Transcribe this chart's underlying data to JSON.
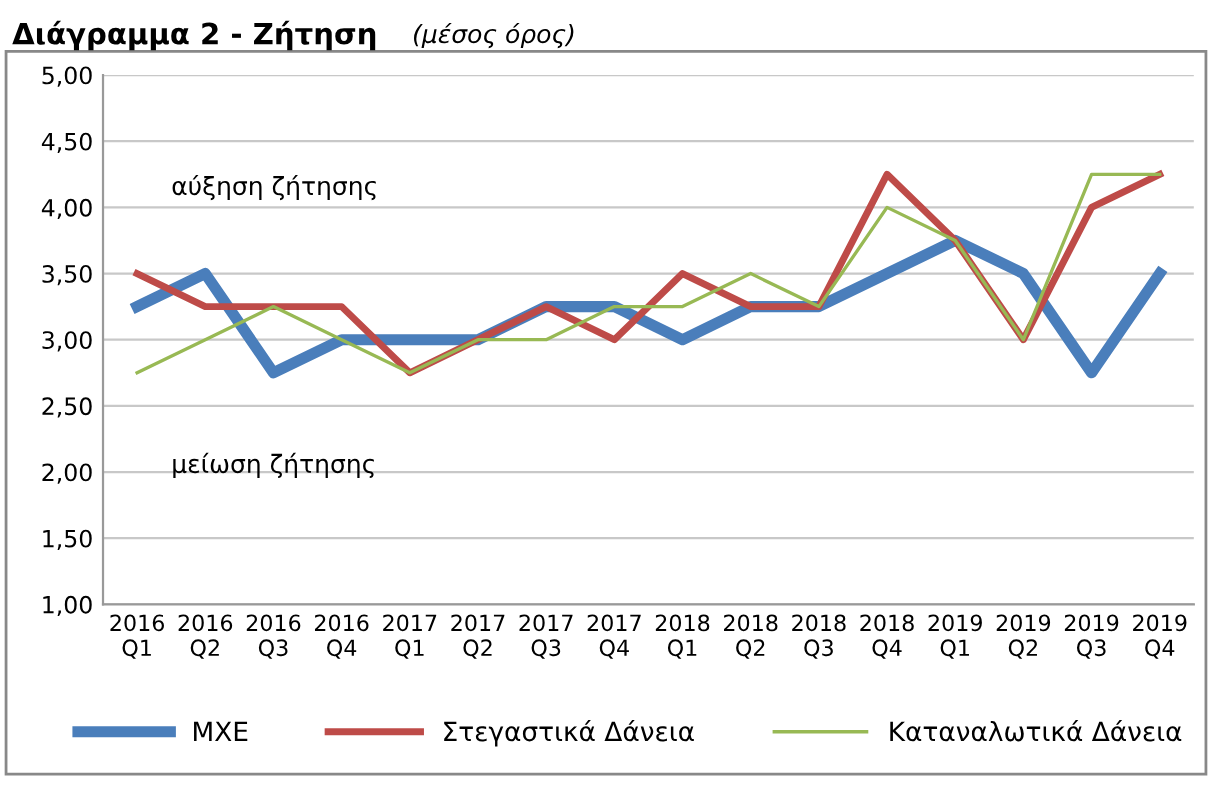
{
  "chart_data": {
    "type": "line",
    "title": "Διάγραμμα 2 - Ζήτηση",
    "subtitle": "(μέσος όρος)",
    "categories": [
      "2016\nQ1",
      "2016\nQ2",
      "2016\nQ3",
      "2016\nQ4",
      "2017\nQ1",
      "2017\nQ2",
      "2017\nQ3",
      "2017\nQ4",
      "2018\nQ1",
      "2018\nQ2",
      "2018\nQ3",
      "2018\nQ4",
      "2019\nQ1",
      "2019\nQ2",
      "2019\nQ3",
      "2019\nQ4"
    ],
    "series": [
      {
        "name": "ΜΧΕ",
        "color": "#4a7ebb",
        "values": [
          3.25,
          3.5,
          2.75,
          3.0,
          3.0,
          3.0,
          3.25,
          3.25,
          3.0,
          3.25,
          3.25,
          3.5,
          3.75,
          3.5,
          2.75,
          3.5
        ]
      },
      {
        "name": "Στεγαστικά Δάνεια",
        "color": "#be4b48",
        "values": [
          3.5,
          3.25,
          3.25,
          3.25,
          2.75,
          3.0,
          3.25,
          3.0,
          3.5,
          3.25,
          3.25,
          4.25,
          3.75,
          3.0,
          4.0,
          4.25
        ]
      },
      {
        "name": "Καταναλωτικά Δάνεια",
        "color": "#98b954",
        "values": [
          2.75,
          3.0,
          3.25,
          3.0,
          2.75,
          3.0,
          3.0,
          3.25,
          3.25,
          3.5,
          3.25,
          4.0,
          3.75,
          3.0,
          4.25,
          4.25
        ]
      }
    ],
    "annotations": [
      "αύξηση ζήτησης",
      "μείωση ζήτησης"
    ],
    "ylim": [
      1.0,
      5.0
    ],
    "yticks": [
      {
        "value": 1.0,
        "label": "1,00"
      },
      {
        "value": 1.5,
        "label": "1,50"
      },
      {
        "value": 2.0,
        "label": "2,00"
      },
      {
        "value": 2.5,
        "label": "2,50"
      },
      {
        "value": 3.0,
        "label": "3,00"
      },
      {
        "value": 3.5,
        "label": "3,50"
      },
      {
        "value": 4.0,
        "label": "4,00"
      },
      {
        "value": 4.5,
        "label": "4,50"
      },
      {
        "value": 5.0,
        "label": "5,00"
      }
    ],
    "grid": "y",
    "legend": "bottom",
    "marker": "none",
    "line_style": "solid"
  }
}
